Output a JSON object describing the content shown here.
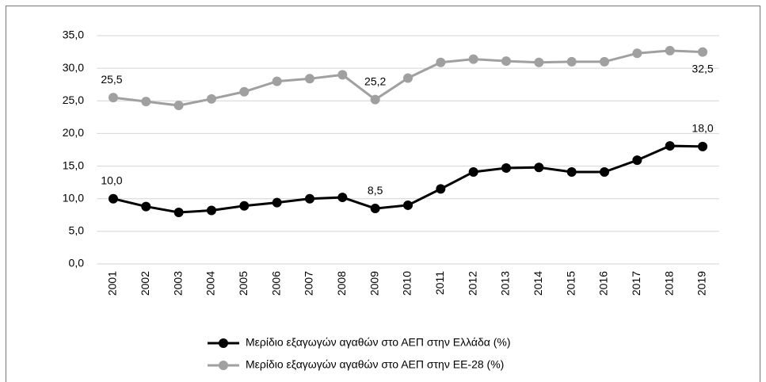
{
  "chart_data": {
    "type": "line",
    "categories": [
      "2001",
      "2002",
      "2003",
      "2004",
      "2005",
      "2006",
      "2007",
      "2008",
      "2009",
      "2010",
      "2011",
      "2012",
      "2013",
      "2014",
      "2015",
      "2016",
      "2017",
      "2018",
      "2019"
    ],
    "series": [
      {
        "name": "Μερίδιο εξαγωγών αγαθών στο ΑΕΠ στην Ελλάδα (%)",
        "color": "#000000",
        "values": [
          10.0,
          8.8,
          7.9,
          8.2,
          8.9,
          9.4,
          10.0,
          10.2,
          8.5,
          9.0,
          11.5,
          14.1,
          14.7,
          14.8,
          14.1,
          14.1,
          15.9,
          18.1,
          18.0
        ],
        "value_labels": [
          "10,0",
          null,
          null,
          null,
          null,
          null,
          null,
          null,
          "8,5",
          null,
          null,
          null,
          null,
          null,
          null,
          null,
          null,
          null,
          "18,0"
        ]
      },
      {
        "name": "Μερίδιο εξαγωγών αγαθών στο ΑΕΠ στην ΕΕ-28 (%)",
        "color": "#a0a0a0",
        "values": [
          25.5,
          24.9,
          24.3,
          25.3,
          26.4,
          28.0,
          28.4,
          29.0,
          25.2,
          28.5,
          30.9,
          31.4,
          31.1,
          30.9,
          31.0,
          31.0,
          32.3,
          32.7,
          32.5
        ],
        "value_labels": [
          "25,5",
          null,
          null,
          null,
          null,
          null,
          null,
          null,
          "25,2",
          null,
          null,
          null,
          null,
          null,
          null,
          null,
          null,
          null,
          "32,5"
        ]
      }
    ],
    "ylim": [
      0,
      35
    ],
    "yticks": [
      {
        "value": 0,
        "label": "0,0"
      },
      {
        "value": 5,
        "label": "5,0"
      },
      {
        "value": 10,
        "label": "10,0"
      },
      {
        "value": 15,
        "label": "15,0"
      },
      {
        "value": 20,
        "label": "20,0"
      },
      {
        "value": 25,
        "label": "25,0"
      },
      {
        "value": 30,
        "label": "30,0"
      },
      {
        "value": 35,
        "label": "35,0"
      }
    ],
    "grid": true
  }
}
